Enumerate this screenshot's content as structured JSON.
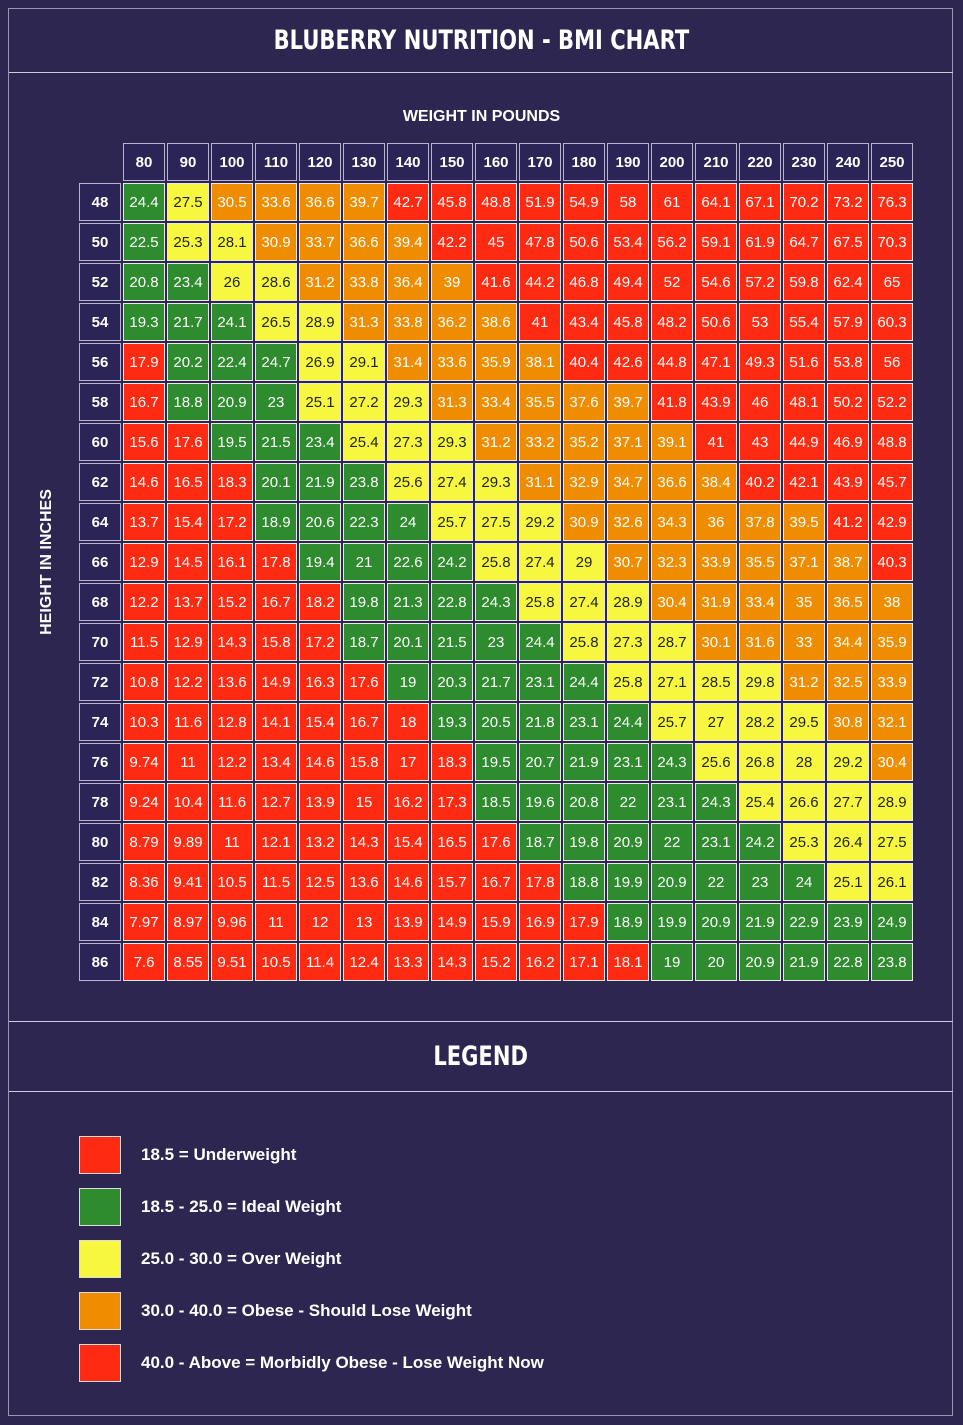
{
  "chart_data": {
    "type": "table",
    "title": "BLUBERRY NUTRITION - BMI CHART",
    "xlabel": "WEIGHT IN POUNDS",
    "ylabel": "HEIGHT IN INCHES",
    "weights": [
      "80",
      "90",
      "100",
      "110",
      "120",
      "130",
      "140",
      "150",
      "160",
      "170",
      "180",
      "190",
      "200",
      "210",
      "220",
      "230",
      "240",
      "250"
    ],
    "heights": [
      "48",
      "50",
      "52",
      "54",
      "56",
      "58",
      "60",
      "62",
      "64",
      "66",
      "68",
      "70",
      "72",
      "74",
      "76",
      "78",
      "80",
      "82",
      "84",
      "86"
    ],
    "values": [
      [
        "24.4",
        "27.5",
        "30.5",
        "33.6",
        "36.6",
        "39.7",
        "42.7",
        "45.8",
        "48.8",
        "51.9",
        "54.9",
        "58",
        "61",
        "64.1",
        "67.1",
        "70.2",
        "73.2",
        "76.3"
      ],
      [
        "22.5",
        "25.3",
        "28.1",
        "30.9",
        "33.7",
        "36.6",
        "39.4",
        "42.2",
        "45",
        "47.8",
        "50.6",
        "53.4",
        "56.2",
        "59.1",
        "61.9",
        "64.7",
        "67.5",
        "70.3"
      ],
      [
        "20.8",
        "23.4",
        "26",
        "28.6",
        "31.2",
        "33.8",
        "36.4",
        "39",
        "41.6",
        "44.2",
        "46.8",
        "49.4",
        "52",
        "54.6",
        "57.2",
        "59.8",
        "62.4",
        "65"
      ],
      [
        "19.3",
        "21.7",
        "24.1",
        "26.5",
        "28.9",
        "31.3",
        "33.8",
        "36.2",
        "38.6",
        "41",
        "43.4",
        "45.8",
        "48.2",
        "50.6",
        "53",
        "55.4",
        "57.9",
        "60.3"
      ],
      [
        "17.9",
        "20.2",
        "22.4",
        "24.7",
        "26.9",
        "29.1",
        "31.4",
        "33.6",
        "35.9",
        "38.1",
        "40.4",
        "42.6",
        "44.8",
        "47.1",
        "49.3",
        "51.6",
        "53.8",
        "56"
      ],
      [
        "16.7",
        "18.8",
        "20.9",
        "23",
        "25.1",
        "27.2",
        "29.3",
        "31.3",
        "33.4",
        "35.5",
        "37.6",
        "39.7",
        "41.8",
        "43.9",
        "46",
        "48.1",
        "50.2",
        "52.2"
      ],
      [
        "15.6",
        "17.6",
        "19.5",
        "21.5",
        "23.4",
        "25.4",
        "27.3",
        "29.3",
        "31.2",
        "33.2",
        "35.2",
        "37.1",
        "39.1",
        "41",
        "43",
        "44.9",
        "46.9",
        "48.8"
      ],
      [
        "14.6",
        "16.5",
        "18.3",
        "20.1",
        "21.9",
        "23.8",
        "25.6",
        "27.4",
        "29.3",
        "31.1",
        "32.9",
        "34.7",
        "36.6",
        "38.4",
        "40.2",
        "42.1",
        "43.9",
        "45.7"
      ],
      [
        "13.7",
        "15.4",
        "17.2",
        "18.9",
        "20.6",
        "22.3",
        "24",
        "25.7",
        "27.5",
        "29.2",
        "30.9",
        "32.6",
        "34.3",
        "36",
        "37.8",
        "39.5",
        "41.2",
        "42.9"
      ],
      [
        "12.9",
        "14.5",
        "16.1",
        "17.8",
        "19.4",
        "21",
        "22.6",
        "24.2",
        "25.8",
        "27.4",
        "29",
        "30.7",
        "32.3",
        "33.9",
        "35.5",
        "37.1",
        "38.7",
        "40.3"
      ],
      [
        "12.2",
        "13.7",
        "15.2",
        "16.7",
        "18.2",
        "19.8",
        "21.3",
        "22.8",
        "24.3",
        "25.8",
        "27.4",
        "28.9",
        "30.4",
        "31.9",
        "33.4",
        "35",
        "36.5",
        "38"
      ],
      [
        "11.5",
        "12.9",
        "14.3",
        "15.8",
        "17.2",
        "18.7",
        "20.1",
        "21.5",
        "23",
        "24.4",
        "25.8",
        "27.3",
        "28.7",
        "30.1",
        "31.6",
        "33",
        "34.4",
        "35.9"
      ],
      [
        "10.8",
        "12.2",
        "13.6",
        "14.9",
        "16.3",
        "17.6",
        "19",
        "20.3",
        "21.7",
        "23.1",
        "24.4",
        "25.8",
        "27.1",
        "28.5",
        "29.8",
        "31.2",
        "32.5",
        "33.9"
      ],
      [
        "10.3",
        "11.6",
        "12.8",
        "14.1",
        "15.4",
        "16.7",
        "18",
        "19.3",
        "20.5",
        "21.8",
        "23.1",
        "24.4",
        "25.7",
        "27",
        "28.2",
        "29.5",
        "30.8",
        "32.1"
      ],
      [
        "9.74",
        "11",
        "12.2",
        "13.4",
        "14.6",
        "15.8",
        "17",
        "18.3",
        "19.5",
        "20.7",
        "21.9",
        "23.1",
        "24.3",
        "25.6",
        "26.8",
        "28",
        "29.2",
        "30.4"
      ],
      [
        "9.24",
        "10.4",
        "11.6",
        "12.7",
        "13.9",
        "15",
        "16.2",
        "17.3",
        "18.5",
        "19.6",
        "20.8",
        "22",
        "23.1",
        "24.3",
        "25.4",
        "26.6",
        "27.7",
        "28.9"
      ],
      [
        "8.79",
        "9.89",
        "11",
        "12.1",
        "13.2",
        "14.3",
        "15.4",
        "16.5",
        "17.6",
        "18.7",
        "19.8",
        "20.9",
        "22",
        "23.1",
        "24.2",
        "25.3",
        "26.4",
        "27.5"
      ],
      [
        "8.36",
        "9.41",
        "10.5",
        "11.5",
        "12.5",
        "13.6",
        "14.6",
        "15.7",
        "16.7",
        "17.8",
        "18.8",
        "19.9",
        "20.9",
        "22",
        "23",
        "24",
        "25.1",
        "26.1"
      ],
      [
        "7.97",
        "8.97",
        "9.96",
        "11",
        "12",
        "13",
        "13.9",
        "14.9",
        "15.9",
        "16.9",
        "17.9",
        "18.9",
        "19.9",
        "20.9",
        "21.9",
        "22.9",
        "23.9",
        "24.9"
      ],
      [
        "7.6",
        "8.55",
        "9.51",
        "10.5",
        "11.4",
        "12.4",
        "13.3",
        "14.3",
        "15.2",
        "16.2",
        "17.1",
        "18.1",
        "19",
        "20",
        "20.9",
        "21.9",
        "22.8",
        "23.8"
      ]
    ],
    "categories": [
      {
        "max": 18.5,
        "color": "#ff2a12"
      },
      {
        "max": 25.0,
        "color": "#2e8b2e"
      },
      {
        "max": 30.0,
        "color": "#f7f740"
      },
      {
        "max": 40.0,
        "color": "#f08c00"
      },
      {
        "max": 999,
        "color": "#ff2a12"
      }
    ]
  },
  "legend": {
    "title": "LEGEND",
    "items": [
      {
        "label": "18.5 = Underweight",
        "color": "#ff2a12"
      },
      {
        "label": "18.5 - 25.0 = Ideal Weight",
        "color": "#2e8b2e"
      },
      {
        "label": "25.0 - 30.0 = Over Weight",
        "color": "#f7f740"
      },
      {
        "label": "30.0 - 40.0 = Obese - Should Lose Weight",
        "color": "#f08c00"
      },
      {
        "label": "40.0 - Above = Morbidly Obese - Lose Weight Now",
        "color": "#ff2a12"
      }
    ]
  }
}
